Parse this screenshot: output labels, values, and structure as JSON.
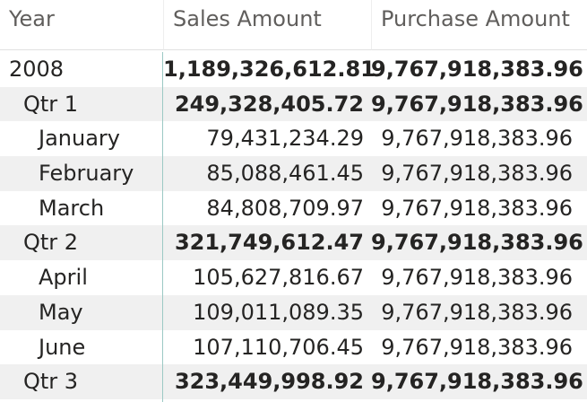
{
  "matrix": {
    "headers": {
      "year": "Year",
      "sales": "Sales Amount",
      "purchase": "Purchase Amount"
    },
    "rows": [
      {
        "label": "2008",
        "sales": "1,189,326,612.81",
        "purchase": "9,767,918,383.96"
      },
      {
        "label": "Qtr 1",
        "sales": "249,328,405.72",
        "purchase": "9,767,918,383.96"
      },
      {
        "label": "January",
        "sales": "79,431,234.29",
        "purchase": "9,767,918,383.96"
      },
      {
        "label": "February",
        "sales": "85,088,461.45",
        "purchase": "9,767,918,383.96"
      },
      {
        "label": "March",
        "sales": "84,808,709.97",
        "purchase": "9,767,918,383.96"
      },
      {
        "label": "Qtr 2",
        "sales": "321,749,612.47",
        "purchase": "9,767,918,383.96"
      },
      {
        "label": "April",
        "sales": "105,627,816.67",
        "purchase": "9,767,918,383.96"
      },
      {
        "label": "May",
        "sales": "109,011,089.35",
        "purchase": "9,767,918,383.96"
      },
      {
        "label": "June",
        "sales": "107,110,706.45",
        "purchase": "9,767,918,383.96"
      },
      {
        "label": "Qtr 3",
        "sales": "323,449,998.92",
        "purchase": "9,767,918,383.96"
      }
    ]
  },
  "colors": {
    "text": "#252423",
    "header_text": "#605e5c",
    "row_shade": "#f0f0f0",
    "divider": "#9cc9c4"
  }
}
